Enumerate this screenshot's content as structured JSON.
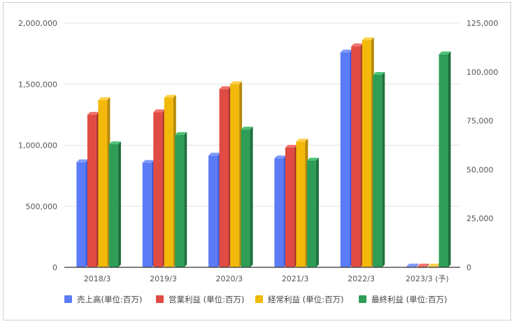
{
  "chart_data": {
    "type": "bar",
    "title": "",
    "categories": [
      "2018/3",
      "2019/3",
      "2020/3",
      "2021/3",
      "2022/3",
      "2023/3 (予)"
    ],
    "series": [
      {
        "name": "売上高(単位:百万)",
        "axis": "right",
        "color": "#5b7cf6",
        "top_color": "#7f9bff",
        "side_color": "#3f5bd6",
        "values": [
          53800,
          53500,
          57200,
          55800,
          110000,
          0
        ]
      },
      {
        "name": "営業利益 (単位:百万)",
        "axis": "left",
        "color": "#e04b43",
        "top_color": "#f0736c",
        "side_color": "#a8322d",
        "values": [
          1250000,
          1270000,
          1460000,
          980000,
          1810000,
          0
        ]
      },
      {
        "name": "経常利益 (単位:百万)",
        "axis": "left",
        "color": "#f2b90a",
        "top_color": "#ffd24d",
        "side_color": "#b58907",
        "values": [
          1370000,
          1390000,
          1500000,
          1030000,
          1860000,
          0
        ]
      },
      {
        "name": "最終利益 (単位:百万)",
        "axis": "right",
        "color": "#2e9e57",
        "top_color": "#4cc174",
        "side_color": "#1f6f3c",
        "values": [
          63000,
          67800,
          70500,
          54600,
          98500,
          109000
        ]
      }
    ],
    "y_left": {
      "min": 0,
      "max": 2000000,
      "ticks": [
        "0",
        "500,000",
        "1,000,000",
        "1,500,000",
        "2,000,000"
      ]
    },
    "y_right": {
      "min": 0,
      "max": 125000,
      "ticks": [
        "0",
        "25,000",
        "50,000",
        "75,000",
        "100,000",
        "125,000"
      ]
    },
    "grid": true,
    "legend_position": "bottom"
  }
}
